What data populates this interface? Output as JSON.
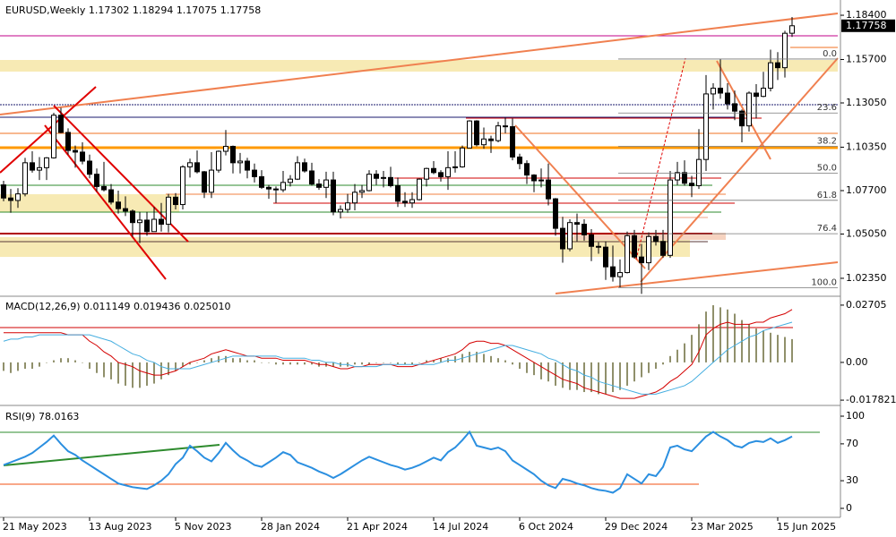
{
  "chart_data": [
    {
      "type": "candlestick",
      "title": "EURUSD,Weekly  1.17302 1.18294 1.17075 1.17758",
      "open": [
        1.0805,
        1.0725,
        1.071,
        1.075,
        1.094,
        1.0895,
        1.091,
        1.097,
        1.123,
        1.1125,
        1.1015,
        1.1005,
        1.095,
        1.087,
        1.0795,
        1.0775,
        1.07,
        1.066,
        1.0645,
        1.0575,
        1.059,
        1.052,
        1.0595,
        1.0565,
        1.073,
        1.0685,
        1.0915,
        1.094,
        1.0885,
        1.076,
        1.0895,
        1.101,
        1.104,
        1.094,
        1.095,
        1.0895,
        1.0855,
        1.079,
        1.078,
        1.0775,
        1.082,
        1.084,
        1.094,
        1.089,
        1.081,
        1.079,
        1.0835,
        1.064,
        1.0655,
        1.0695,
        1.076,
        1.077,
        1.087,
        1.0845,
        1.085,
        1.08,
        1.0705,
        1.0695,
        1.0715,
        1.084,
        1.0905,
        1.088,
        1.0855,
        1.091,
        1.0915,
        1.103,
        1.1195,
        1.105,
        1.1085,
        1.1075,
        1.1165,
        1.116,
        1.0975,
        1.0935,
        1.0865,
        1.083,
        1.0835,
        1.072,
        1.054,
        1.0415,
        1.0575,
        1.0565,
        1.05,
        1.043,
        1.0425,
        1.0305,
        1.0245,
        1.027,
        1.0495,
        1.0365,
        1.033,
        1.049,
        1.046,
        1.0375,
        1.0835,
        1.088,
        1.0815,
        1.08,
        1.096,
        1.136,
        1.1395,
        1.1365,
        1.13,
        1.1255,
        1.1165,
        1.1365,
        1.1345,
        1.1395,
        1.155,
        1.152,
        1.17302
      ],
      "high": [
        1.083,
        1.078,
        1.0785,
        1.097,
        1.101,
        1.0975,
        1.0975,
        1.1245,
        1.1275,
        1.115,
        1.1045,
        1.1065,
        1.099,
        1.0905,
        1.0945,
        1.081,
        1.077,
        1.0735,
        1.0655,
        1.064,
        1.064,
        1.067,
        1.0695,
        1.075,
        1.0755,
        1.0925,
        1.0965,
        1.1015,
        1.089,
        1.1005,
        1.1015,
        1.114,
        1.1045,
        1.1,
        1.097,
        1.0935,
        1.0895,
        1.0805,
        1.0795,
        1.089,
        1.0865,
        1.098,
        1.0965,
        1.094,
        1.084,
        1.0885,
        1.0885,
        1.068,
        1.075,
        1.081,
        1.0805,
        1.0895,
        1.0895,
        1.089,
        1.0915,
        1.085,
        1.076,
        1.076,
        1.0845,
        1.091,
        1.095,
        1.0895,
        1.101,
        1.101,
        1.1045,
        1.12,
        1.12,
        1.1155,
        1.1105,
        1.119,
        1.1215,
        1.121,
        1.0995,
        1.0955,
        1.087,
        1.0905,
        1.0935,
        1.0725,
        1.061,
        1.0595,
        1.063,
        1.0595,
        1.0535,
        1.0455,
        1.046,
        1.0435,
        1.035,
        1.052,
        1.053,
        1.0445,
        1.0515,
        1.053,
        1.053,
        1.089,
        1.0945,
        1.0955,
        1.086,
        1.1145,
        1.1475,
        1.1425,
        1.1575,
        1.1425,
        1.138,
        1.1265,
        1.1375,
        1.142,
        1.1495,
        1.163,
        1.1615,
        1.1745,
        1.18294
      ],
      "low": [
        1.0705,
        1.0635,
        1.0665,
        1.0735,
        1.088,
        1.0835,
        1.0835,
        1.0965,
        1.112,
        1.099,
        1.091,
        1.093,
        1.0845,
        1.0765,
        1.0765,
        1.0685,
        1.063,
        1.0615,
        1.049,
        1.045,
        1.0495,
        1.052,
        1.052,
        1.0515,
        1.0655,
        1.0655,
        1.085,
        1.0875,
        1.0725,
        1.0725,
        1.088,
        1.0985,
        1.0875,
        1.0875,
        1.0845,
        1.082,
        1.078,
        1.072,
        1.0695,
        1.076,
        1.0795,
        1.0835,
        1.088,
        1.08,
        1.0775,
        1.0725,
        1.062,
        1.06,
        1.0635,
        1.065,
        1.0725,
        1.0765,
        1.0805,
        1.079,
        1.079,
        1.067,
        1.067,
        1.0665,
        1.071,
        1.0795,
        1.087,
        1.0825,
        1.0775,
        1.088,
        1.091,
        1.103,
        1.104,
        1.1025,
        1.1,
        1.1065,
        1.112,
        1.0955,
        1.09,
        1.081,
        1.076,
        1.079,
        1.068,
        1.0495,
        1.033,
        1.04,
        1.046,
        1.0465,
        1.034,
        1.0385,
        1.0225,
        1.0215,
        1.018,
        1.0265,
        1.0355,
        1.014,
        1.0285,
        1.0435,
        1.036,
        1.036,
        1.0805,
        1.08,
        1.073,
        1.078,
        1.089,
        1.1265,
        1.133,
        1.1265,
        1.12,
        1.1065,
        1.113,
        1.121,
        1.134,
        1.1375,
        1.1445,
        1.146,
        1.17075
      ],
      "close": [
        1.0725,
        1.071,
        1.075,
        1.094,
        1.0895,
        1.091,
        1.097,
        1.123,
        1.1125,
        1.1015,
        1.1005,
        1.095,
        1.087,
        1.0795,
        1.0775,
        1.07,
        1.066,
        1.0645,
        1.0575,
        1.059,
        1.052,
        1.0595,
        1.0565,
        1.073,
        1.0685,
        1.0915,
        1.094,
        1.0885,
        1.076,
        1.0895,
        1.101,
        1.104,
        1.094,
        1.095,
        1.0895,
        1.0855,
        1.079,
        1.078,
        1.0775,
        1.082,
        1.084,
        1.094,
        1.089,
        1.081,
        1.079,
        1.0835,
        1.064,
        1.0655,
        1.0695,
        1.076,
        1.077,
        1.087,
        1.0845,
        1.085,
        1.08,
        1.0705,
        1.0695,
        1.0715,
        1.084,
        1.0905,
        1.088,
        1.0855,
        1.091,
        1.0915,
        1.103,
        1.1195,
        1.105,
        1.1085,
        1.1075,
        1.1165,
        1.116,
        1.0975,
        1.0935,
        1.0865,
        1.083,
        1.0835,
        1.072,
        1.054,
        1.0415,
        1.0575,
        1.0565,
        1.05,
        1.043,
        1.0425,
        1.0305,
        1.0245,
        1.027,
        1.0495,
        1.0365,
        1.033,
        1.049,
        1.046,
        1.0375,
        1.0835,
        1.088,
        1.0815,
        1.08,
        1.096,
        1.136,
        1.1395,
        1.1365,
        1.13,
        1.1255,
        1.1165,
        1.1365,
        1.1345,
        1.1395,
        1.155,
        1.152,
        1.173,
        1.17758
      ],
      "ylim": [
        1.0131,
        1.1933
      ],
      "yticks": [
        {
          "value": 1.184,
          "label": "1.18400"
        },
        {
          "value": 1.157,
          "label": "1.15700"
        },
        {
          "value": 1.1305,
          "label": "1.13050"
        },
        {
          "value": 1.1035,
          "label": "1.10350"
        },
        {
          "value": 1.077,
          "label": "1.07700"
        },
        {
          "value": 1.0505,
          "label": "1.05050"
        },
        {
          "value": 1.0235,
          "label": "1.02350"
        }
      ],
      "fib": {
        "range": [
          1.0178,
          1.1573
        ],
        "levels": [
          {
            "value": 0,
            "label": "0.0"
          },
          23.6,
          38.2,
          {
            "value": 50,
            "label": "50.0"
          },
          61.8,
          76.4,
          {
            "value": 100,
            "label": "100.0"
          }
        ]
      },
      "xticks": [
        {
          "value": 0,
          "label": "21 May 2023"
        },
        {
          "value": 12,
          "label": "13 Aug 2023"
        },
        {
          "value": 24,
          "label": "5 Nov 2023"
        },
        {
          "value": 36,
          "label": "28 Jan 2024"
        },
        {
          "value": 48,
          "label": "21 Apr 2024"
        },
        {
          "value": 60,
          "label": "14 Jul 2024"
        },
        {
          "value": 72,
          "label": "6 Oct 2024"
        },
        {
          "value": 84,
          "label": "29 Dec 2024"
        },
        {
          "value": 96,
          "label": "23 Mar 2025"
        },
        {
          "value": 108,
          "label": "15 Jun 2025"
        }
      ]
    },
    {
      "type": "macd",
      "title": "MACD(12,26,9) 0.011149 0.019436 0.025010",
      "histogram": {
        "color": "#6b6b3a",
        "values": [
          -0.004,
          -0.005,
          -0.004,
          -0.003,
          -0.003,
          -0.002,
          0.0,
          0.001,
          0.002,
          0.002,
          0.001,
          0.0,
          -0.003,
          -0.005,
          -0.007,
          -0.008,
          -0.01,
          -0.011,
          -0.012,
          -0.012,
          -0.011,
          -0.01,
          -0.008,
          -0.006,
          -0.004,
          -0.002,
          -0.001,
          0.0,
          0.001,
          0.002,
          0.003,
          0.003,
          0.002,
          0.002,
          0.001,
          0.001,
          0.0,
          0.0,
          -0.001,
          -0.001,
          -0.001,
          -0.001,
          -0.001,
          -0.001,
          -0.002,
          -0.002,
          -0.002,
          -0.002,
          -0.002,
          -0.001,
          -0.001,
          -0.001,
          0.0,
          0.0,
          0.0,
          -0.001,
          -0.001,
          -0.001,
          0.0,
          0.001,
          0.001,
          0.002,
          0.002,
          0.003,
          0.004,
          0.005,
          0.005,
          0.004,
          0.003,
          0.002,
          0.001,
          -0.001,
          -0.003,
          -0.005,
          -0.006,
          -0.008,
          -0.009,
          -0.011,
          -0.012,
          -0.013,
          -0.013,
          -0.014,
          -0.014,
          -0.015,
          -0.015,
          -0.014,
          -0.013,
          -0.011,
          -0.009,
          -0.007,
          -0.005,
          -0.003,
          -0.001,
          0.003,
          0.006,
          0.009,
          0.013,
          0.018,
          0.024,
          0.027,
          0.026,
          0.025,
          0.023,
          0.02,
          0.018,
          0.016,
          0.015,
          0.014,
          0.013,
          0.012,
          0.011
        ]
      },
      "series": [
        {
          "color": "#d40000",
          "values": [
            0.014,
            0.014,
            0.014,
            0.014,
            0.014,
            0.014,
            0.014,
            0.014,
            0.014,
            0.013,
            0.013,
            0.013,
            0.01,
            0.008,
            0.005,
            0.003,
            0.0,
            -0.001,
            -0.002,
            -0.004,
            -0.005,
            -0.006,
            -0.006,
            -0.005,
            -0.004,
            -0.002,
            0.0,
            0.001,
            0.002,
            0.004,
            0.005,
            0.006,
            0.005,
            0.004,
            0.003,
            0.003,
            0.002,
            0.002,
            0.002,
            0.001,
            0.001,
            0.001,
            0.001,
            0.0,
            -0.001,
            -0.001,
            -0.002,
            -0.003,
            -0.003,
            -0.002,
            -0.002,
            -0.001,
            -0.001,
            -0.001,
            -0.001,
            -0.002,
            -0.002,
            -0.002,
            -0.001,
            0.0,
            0.001,
            0.002,
            0.003,
            0.004,
            0.006,
            0.009,
            0.01,
            0.01,
            0.009,
            0.009,
            0.008,
            0.006,
            0.004,
            0.002,
            0.0,
            -0.002,
            -0.004,
            -0.006,
            -0.008,
            -0.009,
            -0.01,
            -0.012,
            -0.013,
            -0.014,
            -0.015,
            -0.016,
            -0.017,
            -0.017,
            -0.017,
            -0.016,
            -0.015,
            -0.014,
            -0.012,
            -0.009,
            -0.007,
            -0.004,
            -0.001,
            0.005,
            0.013,
            0.016,
            0.018,
            0.019,
            0.018,
            0.018,
            0.018,
            0.019,
            0.019,
            0.021,
            0.022,
            0.023,
            0.025
          ]
        },
        {
          "color": "#45aee0",
          "values": [
            0.01,
            0.011,
            0.011,
            0.012,
            0.012,
            0.013,
            0.013,
            0.013,
            0.013,
            0.013,
            0.013,
            0.013,
            0.013,
            0.012,
            0.011,
            0.01,
            0.008,
            0.006,
            0.004,
            0.003,
            0.001,
            0.0,
            -0.002,
            -0.003,
            -0.003,
            -0.003,
            -0.003,
            -0.002,
            -0.001,
            0.0,
            0.001,
            0.002,
            0.003,
            0.003,
            0.003,
            0.003,
            0.003,
            0.003,
            0.003,
            0.002,
            0.002,
            0.002,
            0.002,
            0.001,
            0.001,
            0.0,
            0.0,
            -0.001,
            -0.001,
            -0.002,
            -0.002,
            -0.002,
            -0.002,
            -0.001,
            -0.001,
            -0.001,
            -0.001,
            -0.001,
            -0.001,
            -0.001,
            -0.001,
            0.0,
            0.001,
            0.001,
            0.002,
            0.003,
            0.004,
            0.005,
            0.006,
            0.007,
            0.008,
            0.008,
            0.007,
            0.006,
            0.005,
            0.004,
            0.002,
            0.001,
            -0.001,
            -0.003,
            -0.004,
            -0.006,
            -0.007,
            -0.009,
            -0.01,
            -0.011,
            -0.012,
            -0.013,
            -0.014,
            -0.015,
            -0.015,
            -0.015,
            -0.014,
            -0.013,
            -0.012,
            -0.011,
            -0.009,
            -0.006,
            -0.003,
            0.0,
            0.003,
            0.006,
            0.008,
            0.01,
            0.012,
            0.013,
            0.015,
            0.016,
            0.017,
            0.018,
            0.019
          ]
        }
      ],
      "ylim": [
        -0.0199,
        0.0304
      ],
      "yticks": [
        0.02705,
        {
          "value": 0,
          "label": "0.00"
        },
        -0.017821
      ]
    },
    {
      "type": "line",
      "title": "RSI(9) 78.0163",
      "color": "#2b8fe0",
      "values": [
        47,
        50,
        53,
        56,
        60,
        66,
        72,
        79,
        70,
        62,
        58,
        52,
        47,
        42,
        37,
        32,
        27,
        25,
        23,
        22,
        21,
        25,
        30,
        37,
        48,
        55,
        68,
        62,
        55,
        51,
        60,
        71,
        63,
        56,
        52,
        47,
        45,
        50,
        55,
        61,
        58,
        50,
        47,
        44,
        40,
        37,
        33,
        37,
        42,
        47,
        52,
        56,
        53,
        50,
        47,
        45,
        42,
        44,
        47,
        51,
        55,
        52,
        61,
        66,
        74,
        83,
        68,
        66,
        64,
        66,
        62,
        52,
        47,
        42,
        37,
        30,
        25,
        22,
        32,
        30,
        27,
        25,
        22,
        20,
        19,
        17,
        22,
        37,
        32,
        27,
        37,
        35,
        45,
        66,
        68,
        64,
        62,
        70,
        78,
        83,
        78,
        74,
        68,
        66,
        71,
        73,
        72,
        76,
        71,
        74,
        78
      ],
      "ylim": [
        -9.7,
        109.7
      ],
      "yticks": [
        100,
        70,
        30,
        0
      ]
    }
  ]
}
